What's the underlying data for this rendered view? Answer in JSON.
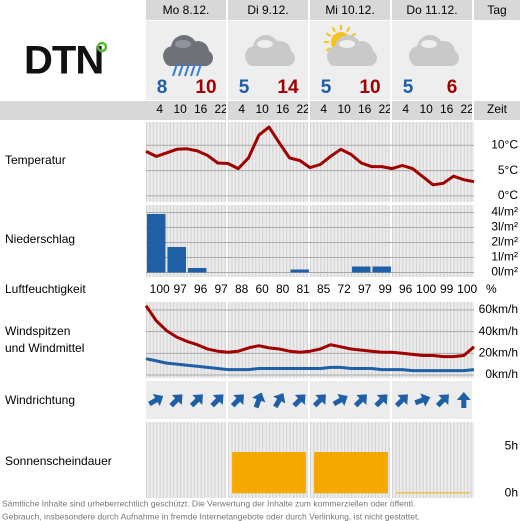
{
  "logo": "DTN",
  "tag": "Tag",
  "zeit": "Zeit",
  "times": [
    4,
    10,
    16,
    22
  ],
  "forecast": [
    {
      "day": "Mo 8.12.",
      "icon": "rain",
      "min": 8,
      "max": 10
    },
    {
      "day": "Di 9.12.",
      "icon": "cloud",
      "min": 5,
      "max": 14
    },
    {
      "day": "Mi 10.12.",
      "icon": "sun_cloud",
      "min": 5,
      "max": 10
    },
    {
      "day": "Do 11.12.",
      "icon": "cloud",
      "min": 5,
      "max": 6
    }
  ],
  "humidity": {
    "label": "Luftfeuchtigkeit",
    "unit": "%",
    "values": [
      100,
      97,
      96,
      97,
      88,
      60,
      80,
      81,
      85,
      72,
      97,
      99,
      96,
      100,
      99,
      100
    ]
  },
  "wind_direction": {
    "label": "Windrichtung",
    "color": "#1f5fa5",
    "values": [
      240,
      225,
      225,
      225,
      225,
      200,
      210,
      225,
      225,
      240,
      225,
      225,
      225,
      250,
      225,
      180
    ]
  },
  "chart_data": [
    {
      "type": "line",
      "label": "Temperatur",
      "ylim": [
        -1.2,
        14.6
      ],
      "grid": true,
      "yticks": [
        {
          "value": 10,
          "label": "10°C"
        },
        {
          "value": 5,
          "label": "5°C"
        },
        {
          "value": 0,
          "label": "0°C"
        }
      ],
      "series": [
        {
          "color": "#a00000",
          "values": [
            8.8,
            7.8,
            8.5,
            9.2,
            9.3,
            8.9,
            8.0,
            6.5,
            6.4,
            5.4,
            7.5,
            12.0,
            13.6,
            10.5,
            7.5,
            7.0,
            5.6,
            6.2,
            7.8,
            9.2,
            8.2,
            6.5,
            5.8,
            5.8,
            5.4,
            6.0,
            5.4,
            3.8,
            2.2,
            2.5,
            3.9,
            3.2,
            2.8
          ]
        }
      ]
    },
    {
      "type": "bar",
      "label": "Niederschlag",
      "color": "#1f5fa5",
      "ylim": [
        -0.3,
        4.5
      ],
      "grid": true,
      "yticks": [
        {
          "value": 4,
          "label": "4l/m²"
        },
        {
          "value": 3,
          "label": "3l/m²"
        },
        {
          "value": 2,
          "label": "2l/m²"
        },
        {
          "value": 1,
          "label": "1l/m²"
        },
        {
          "value": 0,
          "label": "0l/m²"
        }
      ],
      "values": [
        3.9,
        1.7,
        0.3,
        0,
        0,
        0,
        0,
        0.2,
        0,
        0,
        0.4,
        0.4,
        0,
        0,
        0,
        0
      ]
    },
    {
      "type": "line",
      "label": [
        "Windspitzen",
        "und Windmittel"
      ],
      "ylim": [
        -2.8,
        67.4
      ],
      "grid": true,
      "yticks": [
        {
          "value": 60,
          "label": "60km/h"
        },
        {
          "value": 40,
          "label": "40km/h"
        },
        {
          "value": 20,
          "label": "20km/h"
        },
        {
          "value": 0,
          "label": "0km/h"
        }
      ],
      "series": [
        {
          "color": "#a00000",
          "values": [
            64,
            50,
            41,
            35,
            31,
            28,
            24,
            22,
            21,
            22,
            25,
            27,
            25,
            24,
            22,
            21,
            22,
            24,
            28,
            26,
            24,
            23,
            22,
            21,
            21,
            20,
            19,
            18,
            18,
            17,
            17,
            18,
            26
          ]
        },
        {
          "color": "#1f5fa5",
          "values": [
            15,
            13,
            11,
            10,
            9,
            8,
            7,
            6,
            5,
            5,
            5,
            6,
            6,
            6,
            6,
            6,
            6,
            6,
            7,
            7,
            6,
            6,
            6,
            5,
            5,
            5,
            4,
            4,
            4,
            4,
            4,
            4,
            5
          ]
        }
      ]
    },
    {
      "type": "bar",
      "label": "Sonnenscheindauer",
      "color": "#f5a800",
      "ylim": [
        -0.5,
        7.6
      ],
      "grid": false,
      "yticks": [
        {
          "value": 5,
          "label": "5h"
        },
        {
          "value": 0,
          "label": "0h"
        }
      ],
      "values": [
        0,
        4.4,
        4.4,
        0.1
      ]
    }
  ],
  "footer": [
    "Sämtliche Inhalte sind urheberrechtlich geschützt. Die Verwertung der Inhalte zum kommerziellen oder öffentl.",
    "Gebrauch, insbesondere durch Aufnahme in fremde Internetangebote oder durch Verlinkung, ist nicht gestattet."
  ]
}
